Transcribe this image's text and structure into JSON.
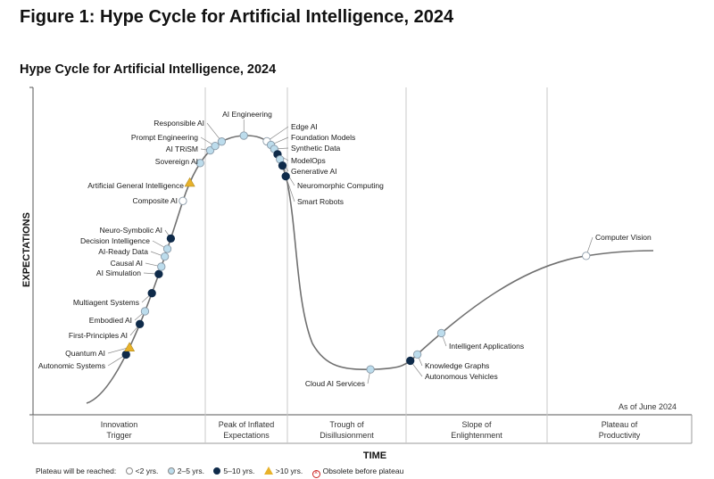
{
  "figure_title": "Figure 1: Hype Cycle for Artificial Intelligence, 2024",
  "chart_title": "Hype Cycle for Artificial Intelligence, 2024",
  "as_of": "As of June 2024",
  "axis": {
    "y": "EXPECTATIONS",
    "x": "TIME"
  },
  "colors": {
    "lt2": "#ffffff",
    "y2to5": "#bcdcec",
    "y5to10": "#0f2b4a",
    "gt10": "#e8b22a",
    "curve": "#707070"
  },
  "phases": [
    {
      "line1": "Innovation",
      "line2": "Trigger"
    },
    {
      "line1": "Peak of Inflated",
      "line2": "Expectations"
    },
    {
      "line1": "Trough of",
      "line2": "Disillusionment"
    },
    {
      "line1": "Slope of",
      "line2": "Enlightenment"
    },
    {
      "line1": "Plateau of",
      "line2": "Productivity"
    }
  ],
  "legend": {
    "label": "Plateau will be reached:",
    "items": [
      "<2 yrs.",
      "2–5 yrs.",
      "5–10 yrs.",
      ">10 yrs.",
      "Obsolete before plateau"
    ]
  },
  "chart_data": {
    "type": "scatter",
    "title": "Hype Cycle for Artificial Intelligence, 2024",
    "xlabel": "TIME",
    "ylabel": "EXPECTATIONS",
    "phases": [
      "Innovation Trigger",
      "Peak of Inflated Expectations",
      "Trough of Disillusionment",
      "Slope of Enlightenment",
      "Plateau of Productivity"
    ],
    "points": [
      {
        "name": "Autonomic Systems",
        "phase": 0,
        "pos": 0.54,
        "plateau": "5-10"
      },
      {
        "name": "Quantum AI",
        "phase": 0,
        "pos": 0.56,
        "plateau": ">10"
      },
      {
        "name": "First-Principles AI",
        "phase": 0,
        "pos": 0.62,
        "plateau": "5-10"
      },
      {
        "name": "Embodied AI",
        "phase": 0,
        "pos": 0.65,
        "plateau": "2-5"
      },
      {
        "name": "Multiagent Systems",
        "phase": 0,
        "pos": 0.69,
        "plateau": "5-10"
      },
      {
        "name": "AI Simulation",
        "phase": 0,
        "pos": 0.73,
        "plateau": "5-10"
      },
      {
        "name": "Causal AI",
        "phase": 0,
        "pos": 0.745,
        "plateau": "2-5"
      },
      {
        "name": "AI-Ready Data",
        "phase": 0,
        "pos": 0.765,
        "plateau": "2-5"
      },
      {
        "name": "Decision Intelligence",
        "phase": 0,
        "pos": 0.78,
        "plateau": "2-5"
      },
      {
        "name": "Neuro-Symbolic AI",
        "phase": 0,
        "pos": 0.8,
        "plateau": "5-10"
      },
      {
        "name": "Composite AI",
        "phase": 0,
        "pos": 0.87,
        "plateau": "<2"
      },
      {
        "name": "Artificial General Intelligence",
        "phase": 0,
        "pos": 0.91,
        "plateau": ">10"
      },
      {
        "name": "Sovereign AI",
        "phase": 0,
        "pos": 0.97,
        "plateau": "2-5"
      },
      {
        "name": "AI TRiSM",
        "phase": 1,
        "pos": 0.06,
        "plateau": "2-5"
      },
      {
        "name": "Prompt Engineering",
        "phase": 1,
        "pos": 0.12,
        "plateau": "2-5"
      },
      {
        "name": "Responsible AI",
        "phase": 1,
        "pos": 0.2,
        "plateau": "2-5"
      },
      {
        "name": "AI Engineering",
        "phase": 1,
        "pos": 0.47,
        "plateau": "2-5"
      },
      {
        "name": "Edge AI",
        "phase": 1,
        "pos": 0.75,
        "plateau": "<2"
      },
      {
        "name": "Foundation Models",
        "phase": 1,
        "pos": 0.8,
        "plateau": "2-5"
      },
      {
        "name": "Synthetic Data",
        "phase": 1,
        "pos": 0.84,
        "plateau": "2-5"
      },
      {
        "name": "ModelOps",
        "phase": 1,
        "pos": 0.88,
        "plateau": "5-10"
      },
      {
        "name": "Generative AI",
        "phase": 1,
        "pos": 0.91,
        "plateau": "2-5"
      },
      {
        "name": "Neuromorphic Computing",
        "phase": 1,
        "pos": 0.94,
        "plateau": "5-10"
      },
      {
        "name": "Smart Robots",
        "phase": 1,
        "pos": 0.98,
        "plateau": "5-10"
      },
      {
        "name": "Cloud AI Services",
        "phase": 2,
        "pos": 0.7,
        "plateau": "2-5"
      },
      {
        "name": "Autonomous Vehicles",
        "phase": 3,
        "pos": 0.03,
        "plateau": "5-10"
      },
      {
        "name": "Knowledge Graphs",
        "phase": 3,
        "pos": 0.08,
        "plateau": "2-5"
      },
      {
        "name": "Intelligent Applications",
        "phase": 3,
        "pos": 0.25,
        "plateau": "2-5"
      },
      {
        "name": "Computer Vision",
        "phase": 4,
        "pos": 0.27,
        "plateau": "<2"
      }
    ]
  }
}
